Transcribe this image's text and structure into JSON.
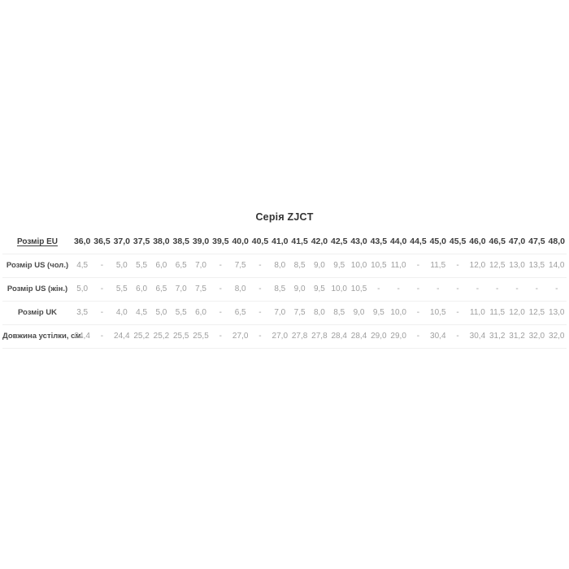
{
  "title": "Серія ZJCT",
  "colors": {
    "background": "#ffffff",
    "title_text": "#333333",
    "header_text": "#3d3d3d",
    "label_text": "#4a4a4a",
    "value_text": "#9e9e9e",
    "divider": "#f0f0f0"
  },
  "chart_data": {
    "type": "table",
    "title": "Серія ZJCT",
    "empty_marker": "-",
    "header_row": {
      "label": "Розмір EU",
      "values": [
        "36,0",
        "36,5",
        "37,0",
        "37,5",
        "38,0",
        "38,5",
        "39,0",
        "39,5",
        "40,0",
        "40,5",
        "41,0",
        "41,5",
        "42,0",
        "42,5",
        "43,0",
        "43,5",
        "44,0",
        "44,5",
        "45,0",
        "45,5",
        "46,0",
        "46,5",
        "47,0",
        "47,5",
        "48,0"
      ]
    },
    "rows": [
      {
        "label": "Розмір US (чол.)",
        "values": [
          "4,5",
          "-",
          "5,0",
          "5,5",
          "6,0",
          "6,5",
          "7,0",
          "-",
          "7,5",
          "-",
          "8,0",
          "8,5",
          "9,0",
          "9,5",
          "10,0",
          "10,5",
          "11,0",
          "-",
          "11,5",
          "-",
          "12,0",
          "12,5",
          "13,0",
          "13,5",
          "14,0"
        ]
      },
      {
        "label": "Розмір US (жін.)",
        "values": [
          "5,0",
          "-",
          "5,5",
          "6,0",
          "6,5",
          "7,0",
          "7,5",
          "-",
          "8,0",
          "-",
          "8,5",
          "9,0",
          "9,5",
          "10,0",
          "10,5",
          "-",
          "-",
          "-",
          "-",
          "-",
          "-",
          "-",
          "-",
          "-",
          "-"
        ]
      },
      {
        "label": "Розмір UK",
        "values": [
          "3,5",
          "-",
          "4,0",
          "4,5",
          "5,0",
          "5,5",
          "6,0",
          "-",
          "6,5",
          "-",
          "7,0",
          "7,5",
          "8,0",
          "8,5",
          "9,0",
          "9,5",
          "10,0",
          "-",
          "10,5",
          "-",
          "11,0",
          "11,5",
          "12,0",
          "12,5",
          "13,0"
        ]
      },
      {
        "label": "Довжина устілки, см.",
        "values": [
          "24,4",
          "-",
          "24,4",
          "25,2",
          "25,2",
          "25,5",
          "25,5",
          "-",
          "27,0",
          "-",
          "27,0",
          "27,8",
          "27,8",
          "28,4",
          "28,4",
          "29,0",
          "29,0",
          "-",
          "30,4",
          "-",
          "30,4",
          "31,2",
          "31,2",
          "32,0",
          "32,0"
        ]
      }
    ]
  }
}
